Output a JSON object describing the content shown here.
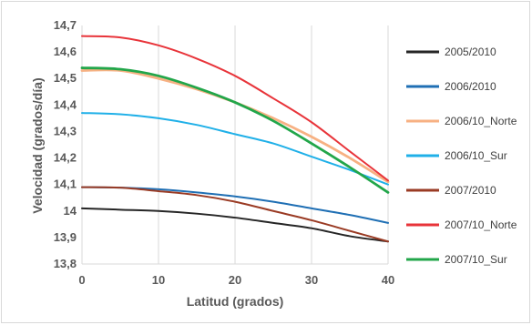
{
  "chart_data": {
    "type": "line",
    "title": "",
    "xlabel": "Latitud (grados)",
    "ylabel": "Velocidad (grados/día)",
    "xlim": [
      0,
      40
    ],
    "ylim": [
      13.8,
      14.7
    ],
    "x_ticks": [
      "0",
      "10",
      "20",
      "30",
      "40"
    ],
    "y_ticks": [
      "13,8",
      "13,9",
      "14",
      "14,1",
      "14,2",
      "14,3",
      "14,4",
      "14,5",
      "14,6",
      "14,7"
    ],
    "grid": "vertical",
    "legend_position": "right",
    "x": [
      0,
      5,
      10,
      15,
      20,
      25,
      30,
      35,
      40
    ],
    "series": [
      {
        "name": "2005/2010",
        "color": "#262626",
        "values": [
          14.01,
          14.005,
          14.0,
          13.99,
          13.975,
          13.955,
          13.935,
          13.905,
          13.885
        ]
      },
      {
        "name": "2006/2010",
        "color": "#1f6fb4",
        "values": [
          14.09,
          14.088,
          14.082,
          14.07,
          14.055,
          14.035,
          14.01,
          13.985,
          13.955
        ]
      },
      {
        "name": "2006/10_Norte",
        "color": "#f7b183",
        "values": [
          14.53,
          14.53,
          14.5,
          14.46,
          14.41,
          14.35,
          14.28,
          14.2,
          14.11
        ]
      },
      {
        "name": "2006/10_Sur",
        "color": "#20b0e8",
        "values": [
          14.37,
          14.365,
          14.35,
          14.325,
          14.29,
          14.255,
          14.205,
          14.155,
          14.1
        ]
      },
      {
        "name": "2007/2010",
        "color": "#9a3b24",
        "values": [
          14.09,
          14.088,
          14.075,
          14.06,
          14.035,
          14.0,
          13.965,
          13.925,
          13.885
        ]
      },
      {
        "name": "2007/10_Norte",
        "color": "#e8343a",
        "values": [
          14.66,
          14.655,
          14.625,
          14.575,
          14.51,
          14.425,
          14.335,
          14.225,
          14.115
        ]
      },
      {
        "name": "2007/10_Sur",
        "color": "#22a64a",
        "values": [
          14.54,
          14.535,
          14.51,
          14.465,
          14.41,
          14.34,
          14.255,
          14.165,
          14.07
        ]
      }
    ]
  }
}
